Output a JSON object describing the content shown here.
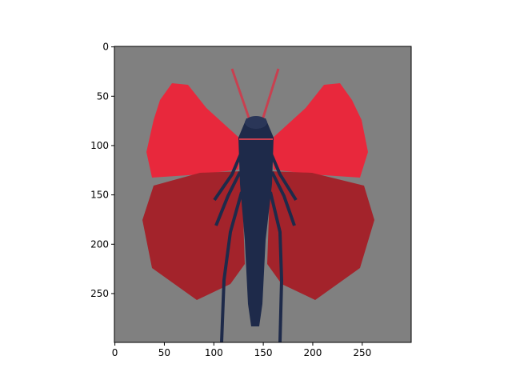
{
  "chart_data": {
    "type": "image",
    "xlim": [
      -0.5,
      299.5
    ],
    "ylim": [
      299.5,
      -0.5
    ],
    "xticks": [
      0,
      50,
      100,
      150,
      200,
      250
    ],
    "yticks": [
      0,
      50,
      100,
      150,
      200,
      250
    ]
  }
}
